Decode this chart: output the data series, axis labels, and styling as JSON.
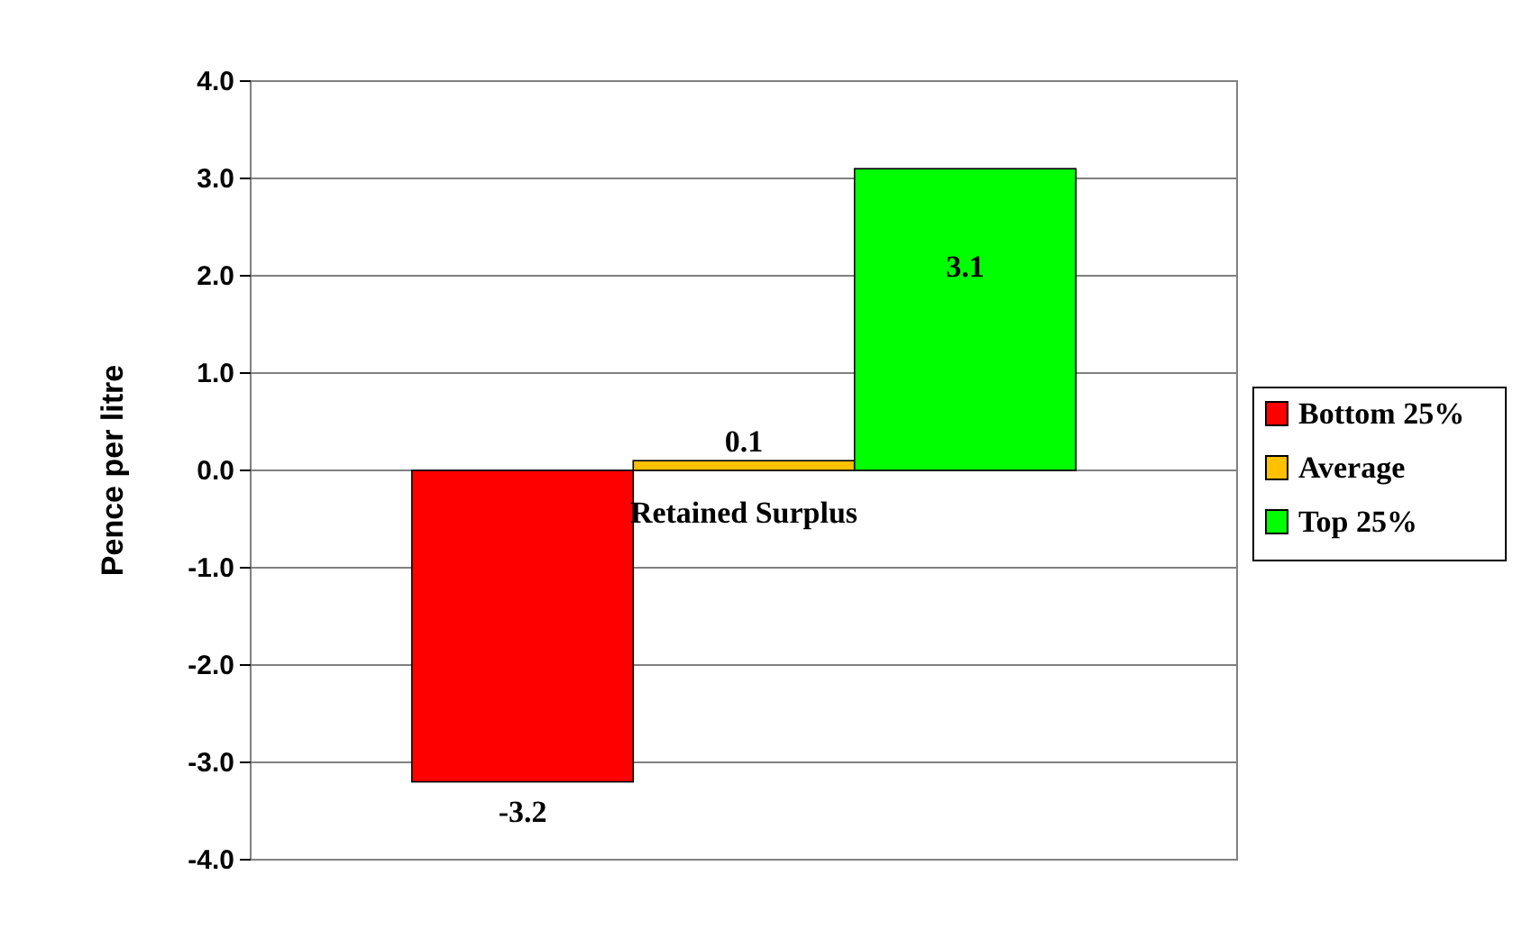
{
  "chart_data": {
    "type": "bar",
    "ylabel": "Pence per litre",
    "categories": [
      "Retained Surplus"
    ],
    "series": [
      {
        "name": "Bottom 25%",
        "color": "#ff0000",
        "values": [
          -3.2
        ]
      },
      {
        "name": "Average",
        "color": "#ffc000",
        "values": [
          0.1
        ]
      },
      {
        "name": "Top 25%",
        "color": "#00ff00",
        "values": [
          3.1
        ]
      }
    ],
    "ylim": [
      -4,
      4
    ],
    "yticks": [
      {
        "value": -4,
        "label": "-4.0"
      },
      {
        "value": -3,
        "label": "-3.0"
      },
      {
        "value": -2,
        "label": "-2.0"
      },
      {
        "value": -1,
        "label": "-1.0"
      },
      {
        "value": 0,
        "label": "0.0"
      },
      {
        "value": 1,
        "label": "1.0"
      },
      {
        "value": 2,
        "label": "2.0"
      },
      {
        "value": 3,
        "label": "3.0"
      },
      {
        "value": 4,
        "label": "4.0"
      }
    ],
    "grid": "y",
    "legend": "right",
    "data_labels": true
  }
}
